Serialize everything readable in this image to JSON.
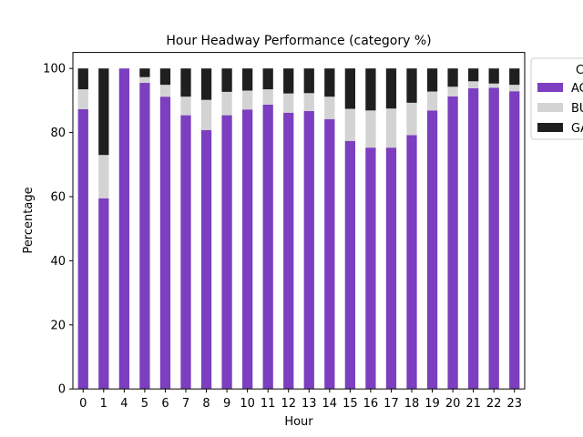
{
  "chart_data": {
    "type": "bar",
    "stacked": true,
    "title": "Hour Headway Performance (category %)",
    "xlabel": "Hour",
    "ylabel": "Percentage",
    "ylim": [
      0,
      105
    ],
    "yticks": [
      0,
      20,
      40,
      60,
      80,
      100
    ],
    "categories": [
      "0",
      "1",
      "4",
      "5",
      "6",
      "7",
      "8",
      "9",
      "10",
      "11",
      "12",
      "13",
      "14",
      "15",
      "16",
      "17",
      "18",
      "19",
      "20",
      "21",
      "22",
      "23"
    ],
    "series": [
      {
        "name": "AC",
        "color": "#7b3fbf",
        "values": [
          87.3,
          59.5,
          100,
          95.5,
          91.2,
          85.4,
          80.8,
          85.4,
          87.2,
          88.7,
          86.2,
          86.7,
          84.2,
          77.4,
          75.3,
          75.3,
          79.2,
          86.9,
          91.3,
          93.8,
          94.0,
          92.9
        ]
      },
      {
        "name": "BU",
        "color": "#d3d3d3",
        "values": [
          6.2,
          13.5,
          0,
          1.8,
          3.7,
          5.8,
          9.4,
          7.3,
          5.9,
          4.8,
          6.0,
          5.6,
          7.0,
          10.0,
          11.6,
          12.2,
          10.1,
          5.9,
          3.0,
          2.2,
          1.3,
          2.0
        ]
      },
      {
        "name": "GA",
        "color": "#1f1f1f",
        "values": [
          6.5,
          27.0,
          0,
          2.7,
          5.1,
          8.8,
          9.8,
          7.3,
          6.9,
          6.5,
          7.8,
          7.7,
          8.8,
          12.6,
          13.1,
          12.5,
          10.7,
          7.2,
          5.7,
          4.0,
          4.7,
          5.1
        ]
      }
    ],
    "legend": {
      "title": "C",
      "placement": "top-right, outside"
    },
    "grid": false
  }
}
